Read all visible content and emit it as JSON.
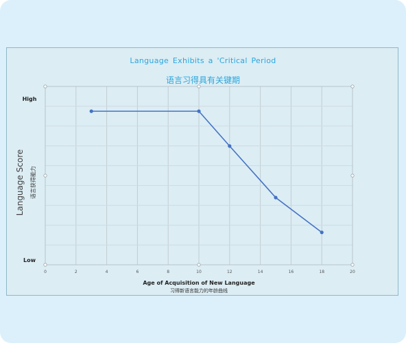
{
  "chart_data": {
    "type": "line",
    "title": "Language  Exhibits  a  'Critical  Period",
    "subtitle": "语言习得具有关键期",
    "xlabel": "Age of Acquisition of  New Language",
    "xlabel_sub": "习得新语言能力的年龄曲线",
    "ylabel": "Language Score",
    "ylabel_sub": "语言获得能力",
    "xlim": [
      0,
      20
    ],
    "x_ticks": [
      0,
      2,
      4,
      6,
      8,
      10,
      12,
      14,
      16,
      18,
      20
    ],
    "ylim": [
      0,
      10
    ],
    "y_tick_labels": [
      {
        "value": 10,
        "label": "High"
      },
      {
        "value": 0,
        "label": "Low"
      }
    ],
    "grid": true,
    "series": [
      {
        "x": [
          3,
          10,
          12,
          15,
          18
        ],
        "values": [
          9.6,
          9.6,
          7.1,
          3.4,
          0.9
        ],
        "color": "#4472c4"
      }
    ]
  }
}
